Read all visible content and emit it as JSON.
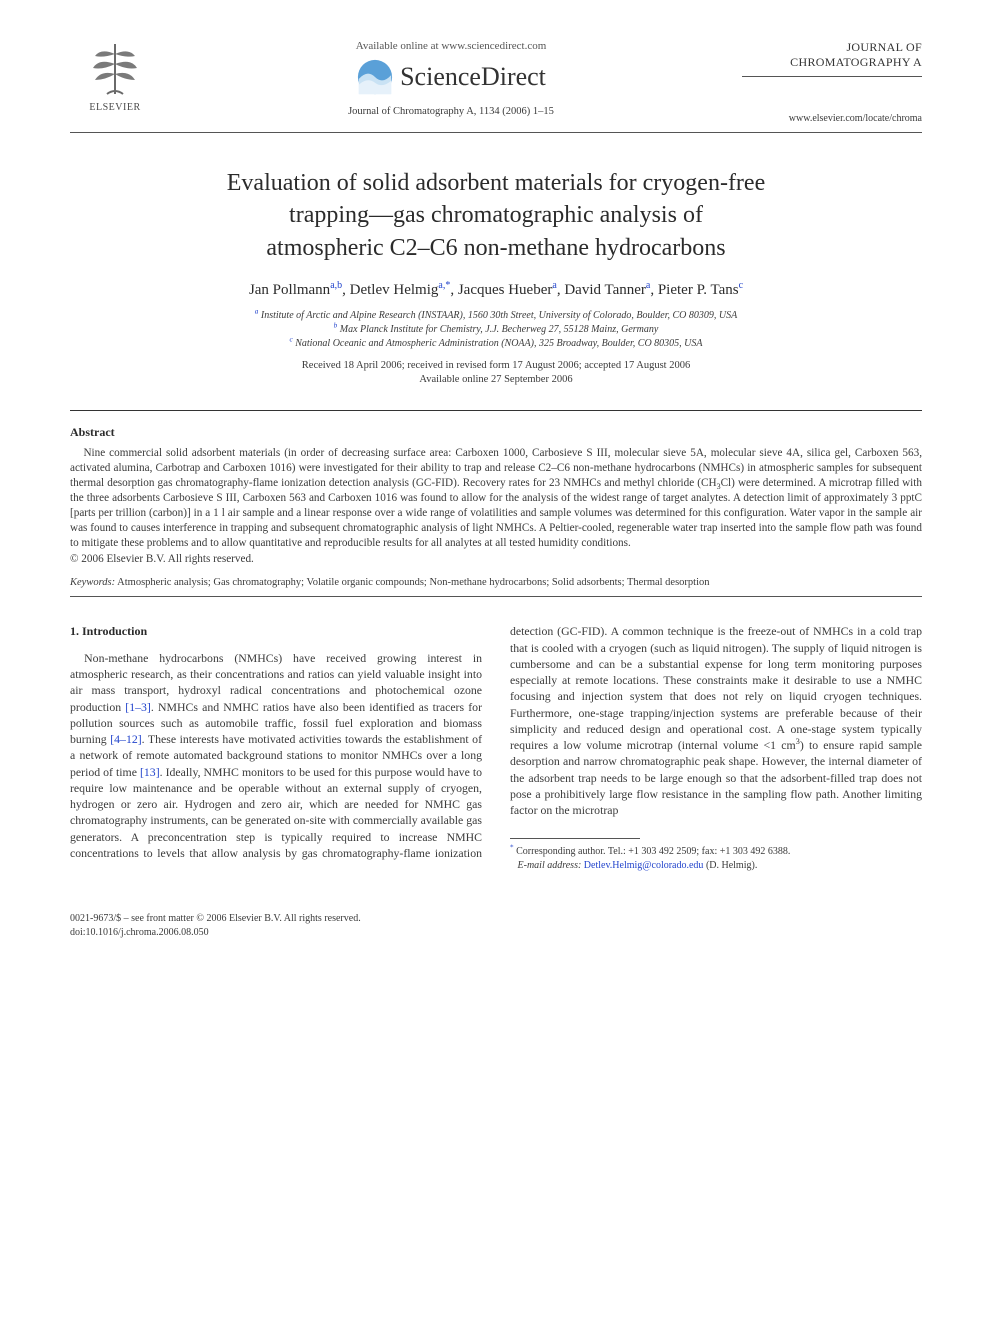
{
  "header": {
    "available_online": "Available online at www.sciencedirect.com",
    "sd_brand": "ScienceDirect",
    "journal_ref": "Journal of Chromatography A, 1134 (2006) 1–15",
    "publisher": "ELSEVIER",
    "journal_name_line1": "JOURNAL OF",
    "journal_name_line2": "CHROMATOGRAPHY A",
    "journal_url": "www.elsevier.com/locate/chroma"
  },
  "title_lines": [
    "Evaluation of solid adsorbent materials for cryogen-free",
    "trapping—gas chromatographic analysis of",
    "atmospheric C2–C6 non-methane hydrocarbons"
  ],
  "authors": [
    {
      "name": "Jan Pollmann",
      "aff": "a,b"
    },
    {
      "name": "Detlev Helmig",
      "aff": "a,",
      "corr": "*"
    },
    {
      "name": "Jacques Hueber",
      "aff": "a"
    },
    {
      "name": "David Tanner",
      "aff": "a"
    },
    {
      "name": "Pieter P. Tans",
      "aff": "c"
    }
  ],
  "affiliations": [
    {
      "key": "a",
      "text": "Institute of Arctic and Alpine Research (INSTAAR), 1560 30th Street, University of Colorado, Boulder, CO 80309, USA"
    },
    {
      "key": "b",
      "text": "Max Planck Institute for Chemistry, J.J. Becherweg 27, 55128 Mainz, Germany"
    },
    {
      "key": "c",
      "text": "National Oceanic and Atmospheric Administration (NOAA), 325 Broadway, Boulder, CO 80305, USA"
    }
  ],
  "dates": {
    "received": "Received 18 April 2006; received in revised form 17 August 2006; accepted 17 August 2006",
    "online": "Available online 27 September 2006"
  },
  "abstract": {
    "heading": "Abstract",
    "body_html": "Nine commercial solid adsorbent materials (in order of decreasing surface area: Carboxen 1000, Carbosieve S III, molecular sieve 5A, molecular sieve 4A, silica gel, Carboxen 563, activated alumina, Carbotrap and Carboxen 1016) were investigated for their ability to trap and release C2–C6 non-methane hydrocarbons (NMHCs) in atmospheric samples for subsequent thermal desorption gas chromatography-flame ionization detection analysis (GC-FID). Recovery rates for 23 NMHCs and methyl chloride (CH<sub>3</sub>Cl) were determined. A microtrap filled with the three adsorbents Carbosieve S III, Carboxen 563 and Carboxen 1016 was found to allow for the analysis of the widest range of target analytes. A detection limit of approximately 3 pptC [parts per trillion (carbon)] in a 1 l air sample and a linear response over a wide range of volatilities and sample volumes was determined for this configuration. Water vapor in the sample air was found to causes interference in trapping and subsequent chromatographic analysis of light NMHCs. A Peltier-cooled, regenerable water trap inserted into the sample flow path was found to mitigate these problems and to allow quantitative and reproducible results for all analytes at all tested humidity conditions.",
    "copyright": "© 2006 Elsevier B.V. All rights reserved."
  },
  "keywords": {
    "label": "Keywords:",
    "text": "Atmospheric analysis; Gas chromatography; Volatile organic compounds; Non-methane hydrocarbons; Solid adsorbents; Thermal desorption"
  },
  "section1": {
    "heading": "1.  Introduction",
    "para_html": "Non-methane hydrocarbons (NMHCs) have received growing interest in atmospheric research, as their concentrations and ratios can yield valuable insight into air mass transport, hydroxyl radical concentrations and photochemical ozone production <a href=\"#\">[1–3]</a>. NMHCs and NMHC ratios have also been identified as tracers for pollution sources such as automobile traffic, fossil fuel exploration and biomass burning <a href=\"#\">[4–12]</a>. These interests have motivated activities towards the establishment of a network of remote automated background stations to monitor NMHCs over a long period of time <a href=\"#\">[13]</a>. Ideally, NMHC monitors to be used for this purpose would have to require low maintenance and be operable without an external supply of cryogen, hydrogen or zero air. Hydrogen and zero air, which are needed for NMHC gas chromatography instruments, can be generated on-site with commercially available gas generators. A preconcentration step is typically required to increase NMHC concentrations to levels that allow analysis by gas chromatography-flame ionization detection (GC-FID). A common technique is the freeze-out of NMHCs in a cold trap that is cooled with a cryogen (such as liquid nitrogen). The supply of liquid nitrogen is cumbersome and can be a substantial expense for long term monitoring purposes especially at remote locations. These constraints make it desirable to use a NMHC focusing and injection system that does not rely on liquid cryogen techniques. Furthermore, one-stage trapping/injection systems are preferable because of their simplicity and reduced design and operational cost. A one-stage system typically requires a low volume microtrap (internal volume &lt;1 cm<sup>3</sup>) to ensure rapid sample desorption and narrow chromatographic peak shape. However, the internal diameter of the adsorbent trap needs to be large enough so that the adsorbent-filled trap does not pose a prohibitively large flow resistance in the sampling flow path. Another limiting factor on the microtrap"
  },
  "correspondence": {
    "line1": "Corresponding author. Tel.: +1 303 492 2509; fax: +1 303 492 6388.",
    "email_label": "E-mail address:",
    "email": "Detlev.Helmig@colorado.edu",
    "email_suffix": "(D. Helmig)."
  },
  "footer": {
    "line1": "0021-9673/$ – see front matter © 2006 Elsevier B.V. All rights reserved.",
    "doi": "doi:10.1016/j.chroma.2006.08.050"
  },
  "colors": {
    "link": "#2244cc",
    "text": "#3a3a3a",
    "orb_outer": "#5aa0d8",
    "orb_wave": "#c9e2f4"
  }
}
